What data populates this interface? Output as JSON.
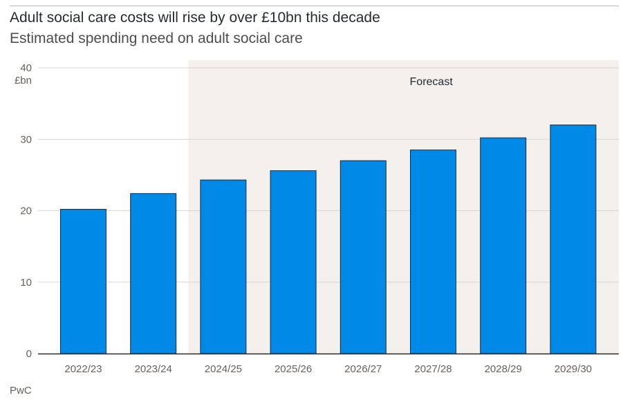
{
  "title": "Adult social care costs will rise by over £10bn this decade",
  "subtitle": "Estimated spending need on adult social care",
  "source": "PwC",
  "chart_data": {
    "type": "bar",
    "title": "Adult social care costs will rise by over £10bn this decade",
    "subtitle": "Estimated spending need on adult social care",
    "unit": "£bn",
    "categories": [
      "2022/23",
      "2023/24",
      "2024/25",
      "2025/26",
      "2026/27",
      "2027/28",
      "2028/29",
      "2029/30"
    ],
    "values": [
      20.2,
      22.4,
      24.3,
      25.6,
      27.0,
      28.5,
      30.2,
      32.0
    ],
    "ylim": [
      0,
      40
    ],
    "yticks": [
      0,
      10,
      20,
      30,
      40
    ],
    "grid": true,
    "legend": "none",
    "bar_color": "#0089e6",
    "bar_stroke": "#1c2a3a",
    "shaded_region": {
      "label": "Forecast",
      "from_category": "2024/25",
      "to_category": "2029/30",
      "color": "#f4f0eb"
    }
  }
}
